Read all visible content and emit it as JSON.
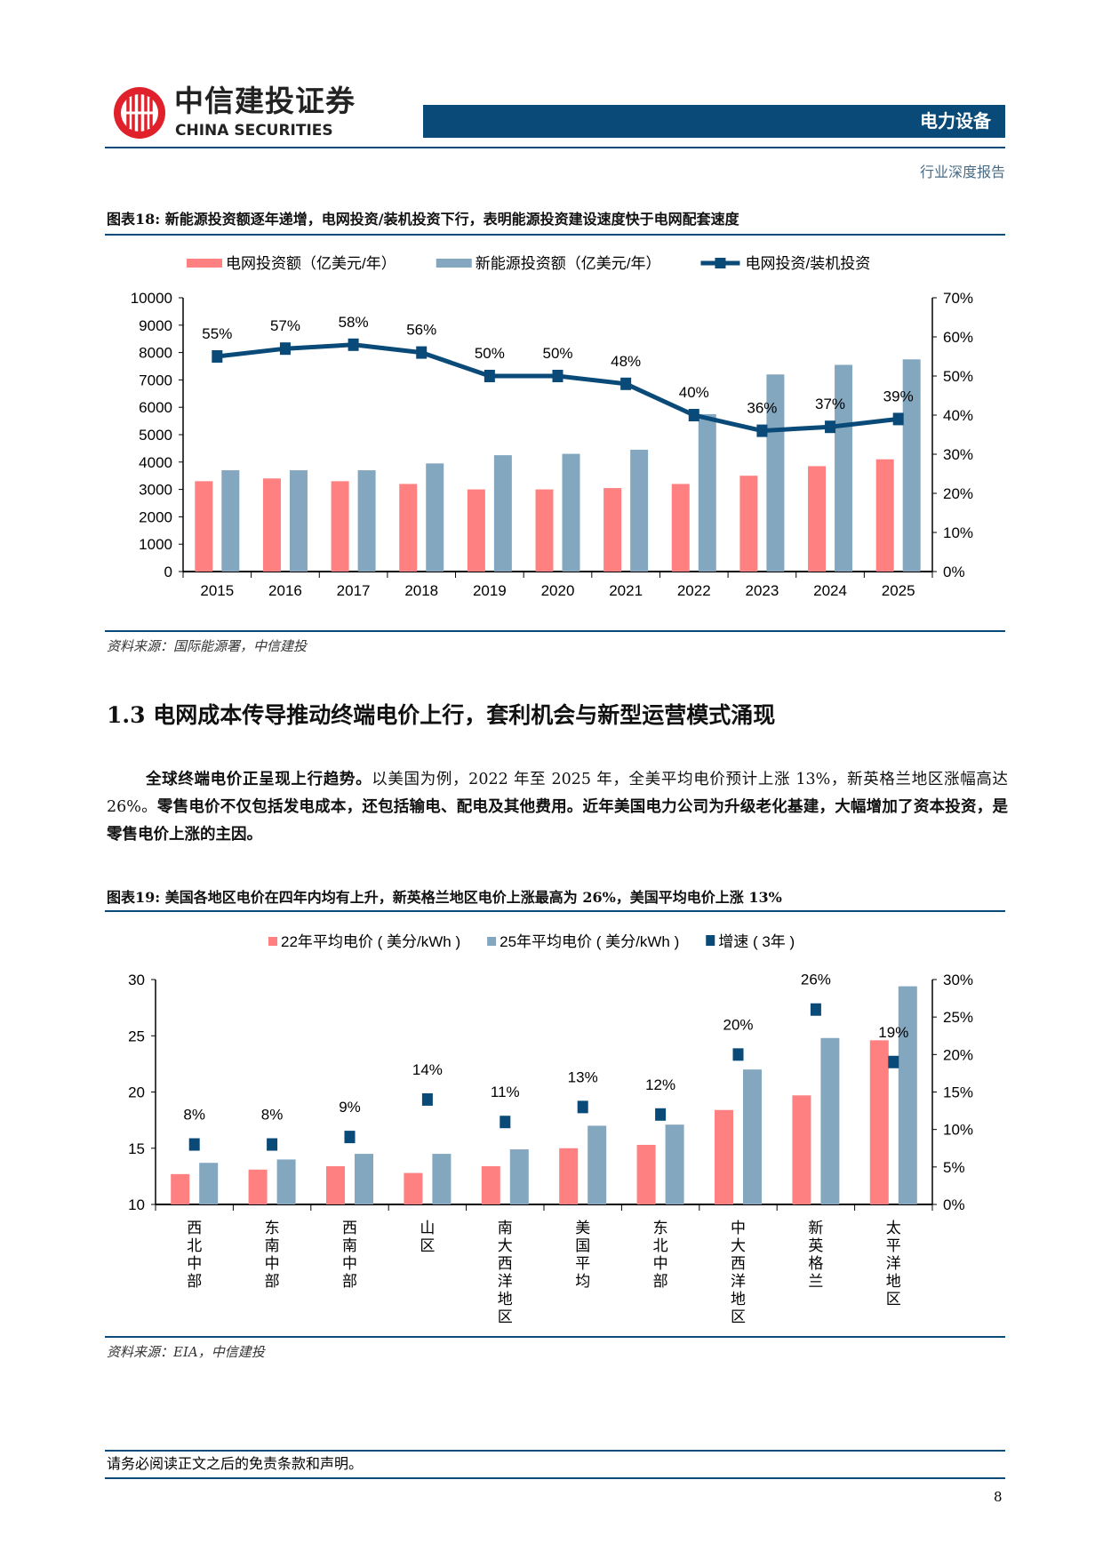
{
  "header": {
    "logo_cn": "中信建投证券",
    "logo_en": "CHINA SECURITIES",
    "sector": "电力设备",
    "report_type": "行业深度报告"
  },
  "figure18": {
    "title": "图表18:  新能源投资额逐年递增，电网投资/装机投资下行，表明能源投资建设速度快于电网配套速度",
    "source": "资料来源：国际能源署，中信建投"
  },
  "section": {
    "heading": "1.3  电网成本传导推动终端电价上行，套利机会与新型运营模式涌现",
    "para_bold": "全球终端电价正呈现上行趋势。",
    "para_rest": "以美国为例，2022 年至 2025 年，全美平均电价预计上涨 13%，新英格兰地区涨幅高达 26%。",
    "para_bold2": "零售电价不仅包括发电成本，还包括输电、配电及其他费用。近年美国电力公司为升级老化基建，大幅增加了资本投资，是零售电价上涨的主因。"
  },
  "figure19": {
    "title": "图表19:  美国各地区电价在四年内均有上升，新英格兰地区电价上涨最高为 26%，美国平均电价上涨 13%",
    "source": "资料来源：EIA，中信建投"
  },
  "footer": {
    "disclaimer": "请务必阅读正文之后的免责条款和声明。",
    "page": "8"
  },
  "colors": {
    "brand": "#0a4a78",
    "bar_red": "#ff8080",
    "bar_blue": "#84a7c0",
    "line": "#0a4a78"
  },
  "chart_data": [
    {
      "type": "bar+line",
      "categories": [
        "2015",
        "2016",
        "2017",
        "2018",
        "2019",
        "2020",
        "2021",
        "2022",
        "2023",
        "2024",
        "2025"
      ],
      "series": [
        {
          "name": "电网投资额（亿美元/年）",
          "type": "bar",
          "axis": "left",
          "values": [
            3300,
            3400,
            3300,
            3200,
            3000,
            3000,
            3050,
            3200,
            3500,
            3850,
            4100
          ]
        },
        {
          "name": "新能源投资额（亿美元/年）",
          "type": "bar",
          "axis": "left",
          "values": [
            3700,
            3700,
            3700,
            3950,
            4250,
            4300,
            4450,
            5750,
            7200,
            7550,
            7750
          ]
        },
        {
          "name": "电网投资/装机投资",
          "type": "line",
          "axis": "right",
          "values": [
            55,
            57,
            58,
            56,
            50,
            50,
            48,
            40,
            36,
            37,
            39
          ],
          "labels": [
            "55%",
            "57%",
            "58%",
            "56%",
            "50%",
            "50%",
            "48%",
            "40%",
            "36%",
            "37%",
            "39%"
          ]
        }
      ],
      "ylim": [
        0,
        10000
      ],
      "yticks": [
        "0",
        "1000",
        "2000",
        "3000",
        "4000",
        "5000",
        "6000",
        "7000",
        "8000",
        "9000",
        "10000"
      ],
      "y2lim": [
        0,
        70
      ],
      "y2ticks": [
        "0%",
        "10%",
        "20%",
        "30%",
        "40%",
        "50%",
        "60%",
        "70%"
      ],
      "legend": "top",
      "grid": false
    },
    {
      "type": "bar+scatter",
      "categories": [
        "西北中部",
        "东南中部",
        "西南中部",
        "山区",
        "南大西洋地区",
        "美国平均",
        "东北中部",
        "中大西洋地区",
        "新英格兰",
        "太平洋地区"
      ],
      "series": [
        {
          "name": "22年平均电价 ( 美分/kWh )",
          "type": "bar",
          "axis": "left",
          "values": [
            12.7,
            13.1,
            13.4,
            12.8,
            13.4,
            15.0,
            15.3,
            18.4,
            19.7,
            24.6
          ]
        },
        {
          "name": "25年平均电价 ( 美分/kWh )",
          "type": "bar",
          "axis": "left",
          "values": [
            13.7,
            14.0,
            14.5,
            14.5,
            14.9,
            17.0,
            17.1,
            22.0,
            24.8,
            29.4
          ]
        },
        {
          "name": "增速 ( 3年 )",
          "type": "scatter",
          "axis": "right",
          "values": [
            8,
            8,
            9,
            14,
            11,
            13,
            12,
            20,
            26,
            19
          ],
          "labels": [
            "8%",
            "8%",
            "9%",
            "14%",
            "11%",
            "13%",
            "12%",
            "20%",
            "26%",
            "19%"
          ]
        }
      ],
      "ylim": [
        10,
        30
      ],
      "yticks": [
        "10",
        "15",
        "20",
        "25",
        "30"
      ],
      "y2lim": [
        0,
        30
      ],
      "y2ticks": [
        "0%",
        "5%",
        "10%",
        "15%",
        "20%",
        "25%",
        "30%"
      ],
      "legend": "top",
      "grid": false
    }
  ]
}
